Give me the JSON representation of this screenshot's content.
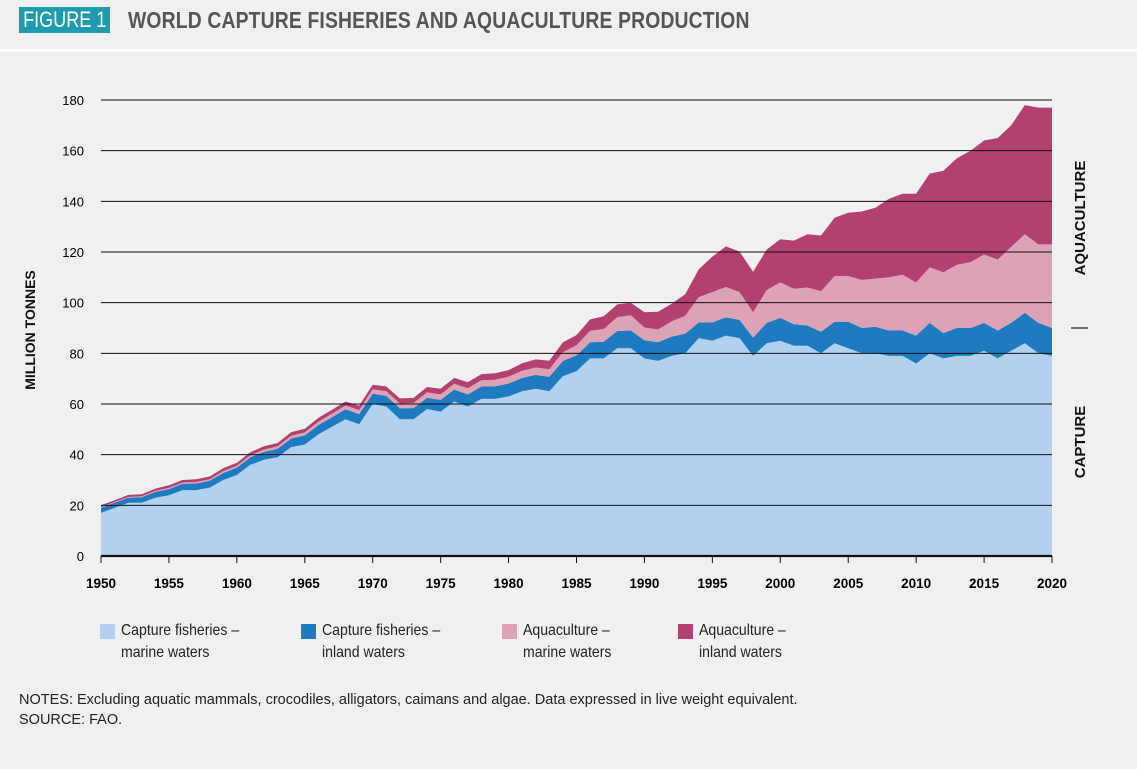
{
  "header": {
    "figure_label": "FIGURE 1",
    "title": "WORLD CAPTURE FISHERIES AND AQUACULTURE PRODUCTION"
  },
  "colors": {
    "capture_marine": "#b2d1ee",
    "capture_inland": "#1f7bc1",
    "aquaculture_marine": "#dba3b5",
    "aquaculture_inland": "#b44070",
    "badge": "#1f9bb0"
  },
  "chart_data": {
    "type": "area",
    "stacked": true,
    "ylabel": "MILLION TONNES",
    "ylim": [
      0,
      180
    ],
    "yticks": [
      0,
      20,
      40,
      60,
      80,
      100,
      120,
      140,
      160,
      180
    ],
    "xlim": [
      1950,
      2020
    ],
    "xticks": [
      1950,
      1955,
      1960,
      1965,
      1970,
      1975,
      1980,
      1985,
      1990,
      1995,
      2000,
      2005,
      2010,
      2015,
      2020
    ],
    "grid": "horizontal",
    "side_labels": {
      "upper": "AQUACULTURE",
      "lower": "CAPTURE"
    },
    "x": [
      1950,
      1951,
      1952,
      1953,
      1954,
      1955,
      1956,
      1957,
      1958,
      1959,
      1960,
      1961,
      1962,
      1963,
      1964,
      1965,
      1966,
      1967,
      1968,
      1969,
      1970,
      1971,
      1972,
      1973,
      1974,
      1975,
      1976,
      1977,
      1978,
      1979,
      1980,
      1981,
      1982,
      1983,
      1984,
      1985,
      1986,
      1987,
      1988,
      1989,
      1990,
      1991,
      1992,
      1993,
      1994,
      1995,
      1996,
      1997,
      1998,
      1999,
      2000,
      2001,
      2002,
      2003,
      2004,
      2005,
      2006,
      2007,
      2008,
      2009,
      2010,
      2011,
      2012,
      2013,
      2014,
      2015,
      2016,
      2017,
      2018,
      2019,
      2020
    ],
    "series": [
      {
        "name": "Capture fisheries – marine waters",
        "values": [
          17,
          19,
          21,
          21,
          23,
          24,
          26,
          26,
          27,
          30,
          32,
          36,
          38,
          39,
          43,
          44,
          48,
          51,
          54,
          52,
          60,
          59,
          54,
          54,
          58,
          57,
          61,
          59,
          62,
          62,
          63,
          65,
          66,
          65,
          71,
          73,
          78,
          78,
          82,
          82,
          78,
          77,
          79,
          80,
          86,
          85,
          87,
          86,
          79,
          84,
          85,
          83,
          83,
          80,
          84,
          82,
          80,
          80,
          79,
          79,
          76,
          80,
          78,
          79,
          79,
          81,
          78,
          81,
          84,
          80,
          79
        ]
      },
      {
        "name": "Capture fisheries – inland waters",
        "values": [
          2,
          2,
          2,
          2.2,
          2.3,
          2.4,
          2.5,
          2.6,
          2.7,
          2.8,
          2.9,
          3,
          3.1,
          3.3,
          3.4,
          3.6,
          3.7,
          3.8,
          3.9,
          4,
          4.1,
          4.2,
          4.3,
          4.4,
          4.5,
          4.6,
          4.7,
          4.8,
          4.9,
          5,
          5.1,
          5.3,
          5.5,
          5.7,
          6,
          6.2,
          6.4,
          6.6,
          6.8,
          7,
          7.2,
          7.4,
          7.6,
          7.8,
          6.2,
          7.2,
          7.2,
          7.2,
          7.2,
          8,
          9,
          8.5,
          8,
          8.5,
          8.5,
          10.5,
          10,
          10.5,
          10,
          10,
          11,
          12,
          10,
          11,
          11,
          11,
          11,
          11,
          12,
          12,
          11
        ]
      },
      {
        "name": "Aquaculture – marine waters",
        "values": [
          0.3,
          0.3,
          0.3,
          0.4,
          0.4,
          0.5,
          0.5,
          0.6,
          0.6,
          0.7,
          0.7,
          0.8,
          0.9,
          1,
          1.1,
          1.2,
          1.3,
          1.4,
          1.5,
          1.6,
          1.7,
          1.8,
          1.9,
          2,
          2.1,
          2.2,
          2.3,
          2.4,
          2.5,
          2.6,
          2.7,
          2.8,
          2.9,
          3,
          3.5,
          4,
          4.5,
          5,
          5.5,
          6,
          5,
          5,
          6,
          7,
          10,
          12,
          12,
          11,
          10,
          13,
          14,
          14,
          15,
          16,
          18,
          18,
          19,
          19,
          21,
          22,
          21,
          22,
          24,
          25,
          26,
          27,
          28,
          30,
          31,
          31,
          33
        ]
      },
      {
        "name": "Aquaculture – inland waters",
        "values": [
          0.7,
          0.7,
          0.8,
          0.8,
          0.9,
          1,
          1,
          1.1,
          1.1,
          1.2,
          1.2,
          1.2,
          1.3,
          1.3,
          1.4,
          1.4,
          1.5,
          1.5,
          1.6,
          1.7,
          1.8,
          1.9,
          2,
          2,
          2.1,
          2.2,
          2.3,
          2.4,
          2.4,
          2.5,
          2.6,
          3,
          3.2,
          3.4,
          3.9,
          4,
          4.5,
          5,
          5,
          5,
          6,
          7,
          7,
          8.5,
          11,
          14,
          16,
          16,
          16,
          16,
          17,
          19,
          21,
          22,
          23,
          25,
          27,
          28,
          31,
          32,
          35,
          37,
          40,
          42,
          44,
          45,
          48,
          48,
          51,
          54,
          54
        ]
      }
    ]
  },
  "legend": [
    {
      "line1": "Capture fisheries –",
      "line2": "marine waters"
    },
    {
      "line1": "Capture fisheries –",
      "line2": "inland waters"
    },
    {
      "line1": "Aquaculture –",
      "line2": "marine waters"
    },
    {
      "line1": "Aquaculture –",
      "line2": "inland waters"
    }
  ],
  "notes": {
    "line1": "NOTES: Excluding aquatic mammals, crocodiles, alligators, caimans and algae. Data expressed in live weight equivalent.",
    "line2": "SOURCE: FAO."
  }
}
